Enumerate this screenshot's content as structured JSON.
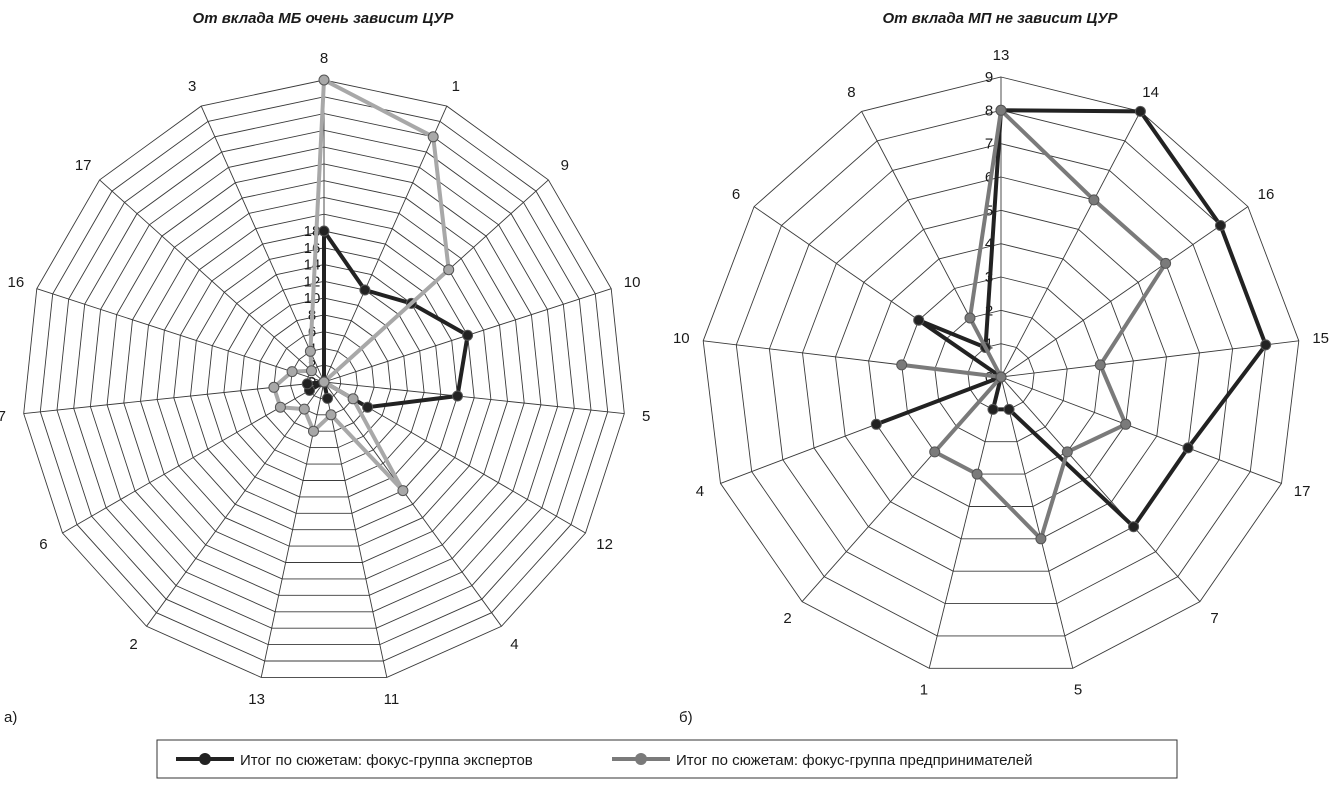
{
  "chart_data": [
    {
      "type": "radar",
      "title": "От вклада МБ очень зависит ЦУР",
      "panel_label": "а)",
      "categories": [
        "8",
        "1",
        "9",
        "10",
        "5",
        "12",
        "4",
        "11",
        "13",
        "2",
        "6",
        "7",
        "16",
        "17",
        "3"
      ],
      "rlim": [
        0,
        18
      ],
      "ticks": [
        "0",
        "2",
        "4",
        "6",
        "8",
        "10",
        "12",
        "14",
        "16",
        "18"
      ],
      "grid": true,
      "series": [
        {
          "name": "Итог по сюжетам: фокус-группа экспертов",
          "color": "#222222",
          "values": [
            9,
            6,
            7,
            9,
            8,
            3,
            0,
            1,
            0,
            0,
            1,
            1,
            0,
            0,
            0
          ]
        },
        {
          "name": "Итог по сюжетам: фокус-группа предпринимателей",
          "color": "#a8a8a8",
          "values": [
            18,
            16,
            10,
            0,
            0,
            2,
            8,
            2,
            3,
            2,
            3,
            3,
            2,
            1,
            2
          ]
        }
      ]
    },
    {
      "type": "radar",
      "title": "От вклада МП не зависит ЦУР",
      "panel_label": "б)",
      "categories": [
        "13",
        "14",
        "16",
        "15",
        "17",
        "7",
        "5",
        "1",
        "2",
        "4",
        "10",
        "6",
        "8"
      ],
      "rlim": [
        0,
        9
      ],
      "ticks": [
        "0",
        "1",
        "2",
        "3",
        "4",
        "5",
        "6",
        "7",
        "8",
        "9"
      ],
      "grid": true,
      "series": [
        {
          "name": "Итог по сюжетам: фокус-группа экспертов",
          "color": "#222222",
          "values": [
            8,
            9,
            8,
            8,
            6,
            6,
            1,
            1,
            0,
            4,
            0,
            3,
            1
          ]
        },
        {
          "name": "Итог по сюжетам: фокус-группа предпринимателей",
          "color": "#7a7a7a",
          "values": [
            8,
            6,
            6,
            3,
            4,
            3,
            5,
            3,
            3,
            0,
            3,
            0,
            2
          ]
        }
      ]
    }
  ],
  "legend": {
    "placement": "bottom",
    "items": [
      {
        "label": "Итог по сюжетам: фокус-группа экспертов",
        "color": "#222222"
      },
      {
        "label": "Итог по сюжетам: фокус-группа предпринимателей",
        "color": "#7a7a7a"
      }
    ]
  }
}
